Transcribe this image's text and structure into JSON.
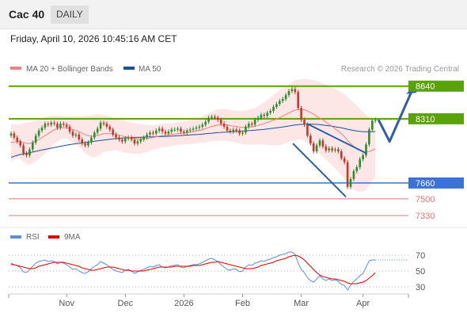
{
  "header": {
    "symbol": "Cac 40",
    "timeframe": "DAILY",
    "datetime": "Friday, April 10, 2026 10:45:16 AM CET"
  },
  "legend": {
    "ma20_label": "MA 20 + Bollinger Bands",
    "ma50_label": "MA 50",
    "copyright": "Research © 2026 Trading Central",
    "rsi_label": "RSI",
    "ma9_label": "9MA"
  },
  "colors": {
    "up": "#2e8b2e",
    "down": "#c0392b",
    "ma20": "#f08080",
    "ma50": "#1e4f8f",
    "band_fill": "#fde6e6",
    "resistance": "#5aa20a",
    "support": "#3a72d8",
    "support_secondary": "#e57373",
    "arrow": "#2f5f9e",
    "rsi": "#5b8fd8",
    "rsi_ma": "#e00000"
  },
  "chart_data": [
    {
      "type": "candlestick",
      "x_ticks": [
        "Nov",
        "Dec",
        "2026",
        "Feb",
        "Mar",
        "Apr"
      ],
      "ylim": [
        7250,
        8750
      ],
      "levels": [
        {
          "value": 8640,
          "label": "8640",
          "kind": "resistance"
        },
        {
          "value": 8310,
          "label": "8310",
          "kind": "pivot"
        },
        {
          "value": 7660,
          "label": "7660",
          "kind": "support"
        },
        {
          "value": 7500,
          "label": "7500",
          "kind": "support"
        },
        {
          "value": 7330,
          "label": "7330",
          "kind": "support"
        }
      ],
      "closes": [
        8160,
        8120,
        8080,
        8040,
        7960,
        7940,
        8000,
        8070,
        8140,
        8190,
        8220,
        8260,
        8250,
        8270,
        8260,
        8220,
        8260,
        8250,
        8230,
        8180,
        8140,
        8150,
        8100,
        8060,
        8040,
        8070,
        8120,
        8170,
        8210,
        8270,
        8260,
        8230,
        8200,
        8150,
        8120,
        8100,
        8080,
        8110,
        8120,
        8100,
        8060,
        8080,
        8100,
        8120,
        8150,
        8170,
        8160,
        8190,
        8210,
        8180,
        8160,
        8180,
        8200,
        8200,
        8210,
        8180,
        8170,
        8190,
        8200,
        8210,
        8220,
        8230,
        8250,
        8280,
        8320,
        8330,
        8320,
        8300,
        8260,
        8230,
        8190,
        8180,
        8200,
        8190,
        8160,
        8170,
        8230,
        8260,
        8250,
        8300,
        8320,
        8350,
        8340,
        8370,
        8390,
        8430,
        8460,
        8490,
        8510,
        8550,
        8590,
        8610,
        8580,
        8420,
        8300,
        8250,
        8140,
        8060,
        7980,
        8040,
        8090,
        8030,
        7990,
        8010,
        7990,
        8000,
        7980,
        7910,
        7870,
        7620,
        7700,
        7780,
        7820,
        7900,
        7940,
        8050,
        8200,
        8290,
        8300
      ],
      "ma20": [
        8070,
        8075,
        8080,
        8080,
        8070,
        8060,
        8060,
        8070,
        8085,
        8100,
        8120,
        8140,
        8160,
        8180,
        8200,
        8210,
        8220,
        8220,
        8220,
        8210,
        8200,
        8190,
        8180,
        8165,
        8150,
        8140,
        8135,
        8135,
        8140,
        8150,
        8160,
        8160,
        8158,
        8155,
        8150,
        8145,
        8135,
        8128,
        8122,
        8116,
        8110,
        8108,
        8106,
        8107,
        8110,
        8115,
        8120,
        8127,
        8135,
        8140,
        8143,
        8146,
        8150,
        8155,
        8160,
        8162,
        8165,
        8170,
        8174,
        8178,
        8185,
        8192,
        8200,
        8210,
        8222,
        8232,
        8240,
        8246,
        8250,
        8250,
        8246,
        8240,
        8236,
        8232,
        8226,
        8222,
        8222,
        8225,
        8228,
        8234,
        8242,
        8252,
        8262,
        8272,
        8283,
        8295,
        8308,
        8322,
        8336,
        8352,
        8368,
        8384,
        8397,
        8404,
        8405,
        8400,
        8390,
        8375,
        8355,
        8335,
        8318,
        8298,
        8276,
        8254,
        8232,
        8208,
        8185,
        8158,
        8130,
        8090,
        8058,
        8030,
        8008,
        7990,
        7976,
        7972,
        7978,
        7992,
        8006
      ],
      "bb_upper": [
        8260,
        8255,
        8250,
        8255,
        8265,
        8270,
        8275,
        8280,
        8290,
        8300,
        8310,
        8320,
        8330,
        8340,
        8340,
        8340,
        8340,
        8335,
        8330,
        8330,
        8330,
        8330,
        8330,
        8335,
        8340,
        8340,
        8345,
        8350,
        8350,
        8350,
        8345,
        8340,
        8330,
        8320,
        8310,
        8305,
        8300,
        8290,
        8280,
        8270,
        8265,
        8260,
        8255,
        8250,
        8248,
        8245,
        8245,
        8250,
        8255,
        8260,
        8262,
        8264,
        8266,
        8270,
        8274,
        8278,
        8282,
        8288,
        8294,
        8300,
        8310,
        8320,
        8335,
        8350,
        8365,
        8380,
        8395,
        8405,
        8410,
        8410,
        8405,
        8400,
        8395,
        8390,
        8390,
        8392,
        8395,
        8400,
        8410,
        8420,
        8435,
        8455,
        8475,
        8500,
        8525,
        8550,
        8575,
        8600,
        8620,
        8640,
        8660,
        8680,
        8700,
        8705,
        8710,
        8712,
        8712,
        8708,
        8700,
        8690,
        8680,
        8668,
        8655,
        8642,
        8628,
        8612,
        8596,
        8578,
        8560,
        8530,
        8500,
        8470,
        8440,
        8410,
        8380,
        8350,
        8320,
        8300,
        8290
      ],
      "bb_lower": [
        7880,
        7895,
        7910,
        7905,
        7875,
        7850,
        7845,
        7860,
        7880,
        7900,
        7930,
        7960,
        7990,
        8020,
        8060,
        8080,
        8100,
        8105,
        8110,
        8090,
        8070,
        8050,
        8030,
        7995,
        7960,
        7940,
        7925,
        7920,
        7930,
        7950,
        7975,
        7980,
        7986,
        7990,
        7990,
        7985,
        7970,
        7966,
        7964,
        7962,
        7955,
        7956,
        7957,
        7964,
        7972,
        7985,
        7995,
        8004,
        8015,
        8020,
        8024,
        8028,
        8034,
        8040,
        8046,
        8046,
        8048,
        8052,
        8054,
        8056,
        8060,
        8064,
        8065,
        8070,
        8079,
        8084,
        8085,
        8087,
        8090,
        8090,
        8087,
        8080,
        8077,
        8074,
        8062,
        8052,
        8049,
        8050,
        8046,
        8048,
        8049,
        8049,
        8049,
        8044,
        8041,
        8040,
        8041,
        8044,
        8052,
        8064,
        8076,
        8088,
        8094,
        8103,
        8100,
        8088,
        8068,
        8042,
        8010,
        7980,
        7956,
        7928,
        7897,
        7866,
        7836,
        7804,
        7774,
        7738,
        7700,
        7650,
        7616,
        7590,
        7576,
        7570,
        7572,
        7594,
        7636,
        7684,
        7722
      ],
      "ma50": [
        7920,
        7930,
        7940,
        7948,
        7954,
        7960,
        7966,
        7973,
        7980,
        7987,
        7994,
        8000,
        8006,
        8012,
        8019,
        8025,
        8031,
        8037,
        8043,
        8048,
        8053,
        8058,
        8062,
        8066,
        8070,
        8074,
        8078,
        8082,
        8086,
        8090,
        8094,
        8098,
        8102,
        8106,
        8109,
        8112,
        8114,
        8116,
        8118,
        8120,
        8121,
        8122,
        8123,
        8124,
        8125,
        8126,
        8127,
        8128,
        8129,
        8130,
        8131,
        8132,
        8134,
        8136,
        8138,
        8140,
        8142,
        8144,
        8146,
        8148,
        8150,
        8152,
        8155,
        8158,
        8161,
        8164,
        8167,
        8170,
        8172,
        8174,
        8176,
        8178,
        8180,
        8182,
        8184,
        8186,
        8188,
        8190,
        8192,
        8194,
        8197,
        8200,
        8203,
        8207,
        8211,
        8215,
        8219,
        8223,
        8227,
        8232,
        8237,
        8242,
        8246,
        8250,
        8253,
        8255,
        8256,
        8256,
        8255,
        8253,
        8250,
        8246,
        8242,
        8238,
        8234,
        8229,
        8224,
        8218,
        8212,
        8204,
        8197,
        8191,
        8186,
        8182,
        8179,
        8178,
        8178,
        8179,
        8181
      ]
    },
    {
      "type": "line",
      "name": "RSI",
      "ylim": [
        20,
        80
      ],
      "y_ticks": [
        70,
        50,
        30
      ],
      "values": [
        60,
        58,
        57,
        54,
        49,
        48,
        52,
        56,
        60,
        62,
        63,
        64,
        62,
        63,
        62,
        59,
        61,
        60,
        58,
        55,
        52,
        53,
        50,
        48,
        47,
        49,
        53,
        56,
        58,
        62,
        60,
        58,
        55,
        52,
        50,
        49,
        48,
        51,
        52,
        50,
        47,
        49,
        51,
        52,
        54,
        56,
        55,
        57,
        58,
        55,
        54,
        55,
        57,
        57,
        58,
        55,
        54,
        56,
        57,
        58,
        58,
        59,
        61,
        63,
        65,
        66,
        64,
        62,
        58,
        55,
        52,
        51,
        53,
        52,
        49,
        50,
        55,
        58,
        57,
        60,
        61,
        63,
        62,
        64,
        65,
        67,
        68,
        70,
        71,
        72,
        74,
        74,
        71,
        60,
        52,
        48,
        42,
        38,
        36,
        40,
        44,
        40,
        38,
        40,
        38,
        39,
        37,
        33,
        32,
        26,
        32,
        37,
        40,
        44,
        47,
        55,
        63,
        64,
        64
      ],
      "ma": [
        58,
        58,
        57,
        56,
        55,
        54,
        53,
        53,
        54,
        56,
        57,
        58,
        59,
        60,
        61,
        61,
        61,
        61,
        60,
        59,
        58,
        57,
        56,
        54,
        53,
        52,
        51,
        51,
        52,
        53,
        54,
        55,
        55,
        55,
        54,
        53,
        52,
        51,
        51,
        50,
        50,
        50,
        50,
        50,
        51,
        52,
        53,
        54,
        55,
        55,
        55,
        55,
        55,
        56,
        56,
        56,
        56,
        56,
        56,
        57,
        57,
        57,
        58,
        59,
        60,
        61,
        61,
        62,
        61,
        60,
        59,
        58,
        57,
        56,
        55,
        54,
        53,
        53,
        53,
        54,
        55,
        57,
        58,
        59,
        60,
        61,
        63,
        64,
        65,
        66,
        68,
        69,
        70,
        69,
        67,
        64,
        60,
        56,
        52,
        48,
        45,
        43,
        42,
        41,
        40,
        40,
        39,
        38,
        37,
        35,
        34,
        34,
        34,
        35,
        36,
        38,
        41,
        44,
        48
      ]
    }
  ]
}
